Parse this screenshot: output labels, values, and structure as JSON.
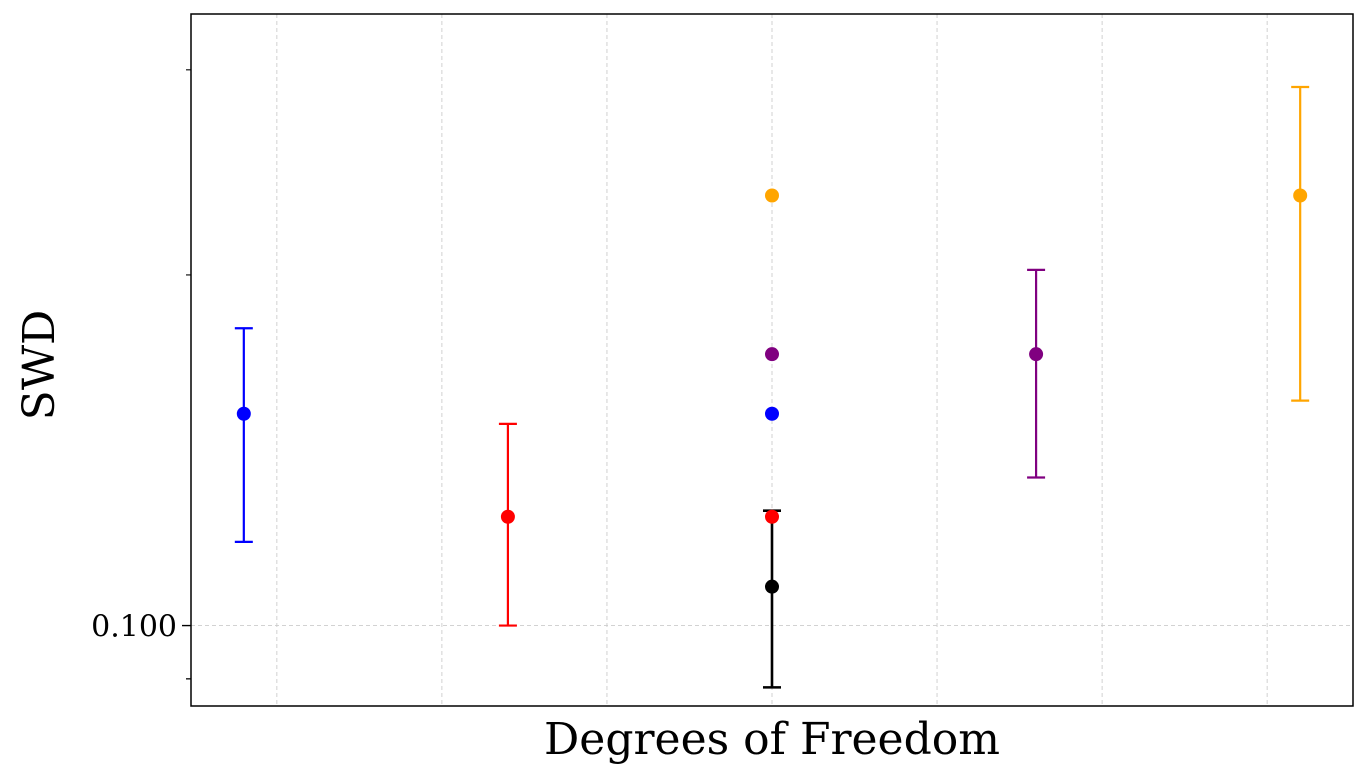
{
  "chart_data": {
    "type": "scatter",
    "xlabel": "Degrees of Freedom",
    "ylabel": "SWD",
    "yscale": "log",
    "ylim": [
      0.0853,
      0.335
    ],
    "y_tick_labels": [
      {
        "value": 0.1,
        "label": "0.100"
      }
    ],
    "grid": true,
    "series": [
      {
        "color": "#0000ff",
        "x": 1,
        "y": 0.152,
        "err_low": 0.118,
        "err_high": 0.18
      },
      {
        "color": "#ff0000",
        "x": 2,
        "y": 0.124,
        "err_low": 0.1,
        "err_high": 0.149
      },
      {
        "color": "#000000",
        "x": 3,
        "y": 0.108,
        "err_low": 0.0885,
        "err_high": 0.1255
      },
      {
        "color": "#800080",
        "x": 4,
        "y": 0.171,
        "err_low": 0.134,
        "err_high": 0.202
      },
      {
        "color": "#ffa500",
        "x": 5,
        "y": 0.234,
        "err_low": 0.156,
        "err_high": 0.29
      }
    ],
    "summary_points": [
      {
        "color": "#ffa500",
        "x": 3,
        "y": 0.234
      },
      {
        "color": "#800080",
        "x": 3,
        "y": 0.171
      },
      {
        "color": "#0000ff",
        "x": 3,
        "y": 0.152
      },
      {
        "color": "#ff0000",
        "x": 3,
        "y": 0.124
      }
    ]
  }
}
